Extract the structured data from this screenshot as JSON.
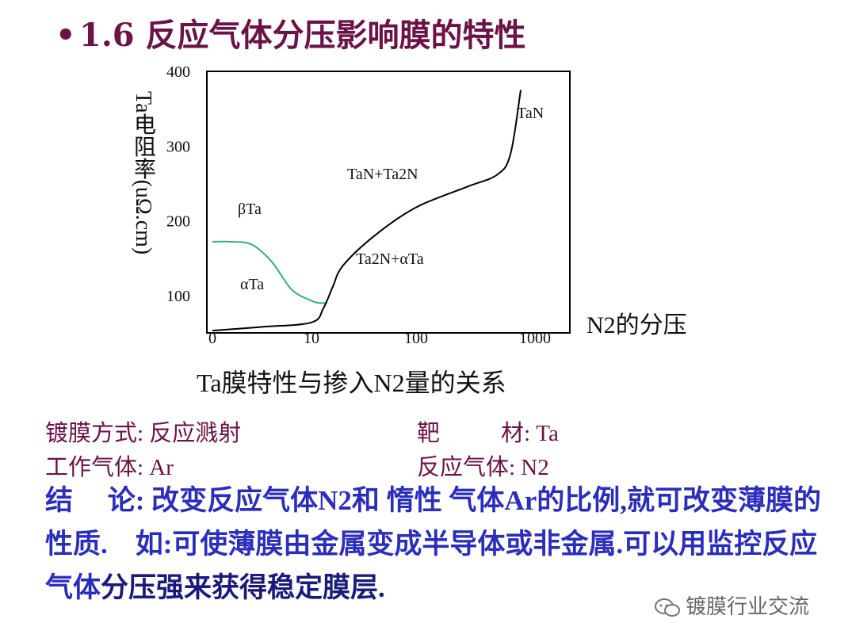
{
  "slide": {
    "bullet": "•",
    "title": "1.6 反应气体分压影响膜的特性"
  },
  "chart_data": {
    "type": "line",
    "ylabel": "Ta电阻率(uΩ.cm)",
    "xlabel": "N2的分压",
    "caption": "Ta膜特性与掺入N2量的关系",
    "x_ticks": [
      "0",
      "10",
      "100",
      "1000"
    ],
    "y_ticks": [
      "100",
      "200",
      "300",
      "400"
    ],
    "ylim": [
      50,
      400
    ],
    "x_scale": "log-like (0, 10, 100, 1000)",
    "grid": false,
    "series": [
      {
        "color": "#2fae7f",
        "x": [
          0,
          2,
          4,
          6,
          8,
          10,
          12,
          14
        ],
        "y": [
          172,
          172,
          168,
          145,
          108,
          93,
          90,
          90
        ]
      },
      {
        "color": "#000000",
        "x": [
          0,
          5,
          10,
          13,
          16,
          20,
          40,
          100,
          300,
          600,
          800,
          1000
        ],
        "y": [
          53,
          58,
          64,
          83,
          112,
          140,
          180,
          218,
          245,
          262,
          290,
          375
        ]
      }
    ],
    "annotations": [
      {
        "text": "βTa"
      },
      {
        "text": "αTa"
      },
      {
        "text": "Ta2N+αTa"
      },
      {
        "text": "TaN+Ta2N"
      },
      {
        "text": "TaN"
      }
    ]
  },
  "specs": {
    "method_label": "镀膜方式: 反应溅射",
    "target_label": "靶",
    "target_value": "材: Ta",
    "work_gas": "工作气体: Ar",
    "react_gas": "反应气体: N2"
  },
  "conclusion": {
    "part1": "结　 论: 改变反应气体N2和 惰性 气体Ar的比例,就可改变薄膜的性质.　如:可使薄膜由金属变成半导体或非金属.可以用监控反应气体",
    "part2": "分压强来获得稳定膜层."
  },
  "watermark": "镀膜行业交流"
}
